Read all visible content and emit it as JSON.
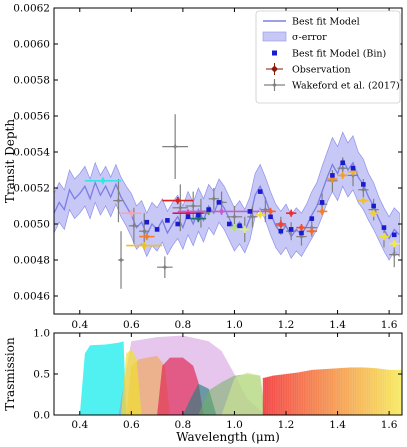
{
  "chart_data": [
    {
      "type": "line",
      "ylabel": "Transit Depth",
      "xlim": [
        0.3,
        1.65
      ],
      "ylim": [
        0.0045,
        0.0062
      ],
      "xticks": [
        0.4,
        0.6,
        0.8,
        1.0,
        1.2,
        1.4,
        1.6
      ],
      "xtick_labels": [
        "0.4",
        "0.6",
        "0.8",
        "1.0",
        "1.2",
        "1.4",
        "1.6"
      ],
      "yticks": [
        0.0046,
        0.0048,
        0.005,
        0.0052,
        0.0054,
        0.0056,
        0.0058,
        0.006,
        0.0062
      ],
      "ytick_labels": [
        "0.0046",
        "0.0048",
        "0.0050",
        "0.0052",
        "0.0054",
        "0.0056",
        "0.0058",
        "0.0060",
        "0.0062"
      ],
      "legend_position": "top-right",
      "legend": [
        {
          "label": "Best fit Model",
          "kind": "line",
          "color": "#7b7ee6"
        },
        {
          "label": "σ-error",
          "kind": "band",
          "color": "#c7c8f5"
        },
        {
          "label": "Best fit Model (Bin)",
          "kind": "square",
          "color": "#1a1ad0"
        },
        {
          "label": "Observation",
          "kind": "errorpoint",
          "color": "#8b1a0a"
        },
        {
          "label": "Wakeford et al. (2017)",
          "kind": "errorpoint",
          "color": "#808080"
        }
      ],
      "model": {
        "x": [
          0.3,
          0.32,
          0.34,
          0.36,
          0.38,
          0.4,
          0.42,
          0.44,
          0.46,
          0.48,
          0.5,
          0.52,
          0.54,
          0.56,
          0.58,
          0.6,
          0.62,
          0.64,
          0.66,
          0.68,
          0.7,
          0.72,
          0.74,
          0.76,
          0.78,
          0.8,
          0.82,
          0.84,
          0.86,
          0.88,
          0.9,
          0.92,
          0.94,
          0.96,
          0.98,
          1.0,
          1.02,
          1.04,
          1.06,
          1.08,
          1.1,
          1.12,
          1.14,
          1.16,
          1.18,
          1.2,
          1.22,
          1.24,
          1.26,
          1.28,
          1.3,
          1.32,
          1.34,
          1.36,
          1.38,
          1.4,
          1.42,
          1.44,
          1.46,
          1.48,
          1.5,
          1.52,
          1.54,
          1.56,
          1.58,
          1.6,
          1.62,
          1.64
        ],
        "y": [
          0.00506,
          0.00512,
          0.00508,
          0.00519,
          0.00514,
          0.00517,
          0.00521,
          0.00514,
          0.00523,
          0.00516,
          0.00521,
          0.00515,
          0.00522,
          0.00515,
          0.0051,
          0.00505,
          0.00498,
          0.00501,
          0.00494,
          0.005,
          0.00497,
          0.00502,
          0.00495,
          0.005,
          0.00504,
          0.00498,
          0.00506,
          0.005,
          0.00508,
          0.00502,
          0.0051,
          0.00506,
          0.00513,
          0.00509,
          0.00503,
          0.00497,
          0.00501,
          0.00496,
          0.00503,
          0.00516,
          0.00521,
          0.00514,
          0.00506,
          0.00499,
          0.00495,
          0.00499,
          0.00493,
          0.00497,
          0.00494,
          0.00499,
          0.00505,
          0.0051,
          0.00518,
          0.00526,
          0.00533,
          0.00528,
          0.00536,
          0.0053,
          0.00534,
          0.00526,
          0.00522,
          0.00515,
          0.0051,
          0.00503,
          0.00497,
          0.00492,
          0.00497,
          0.00494
        ],
        "sigma": [
          0.00011,
          0.00011,
          0.00011,
          0.00011,
          0.00011,
          0.00011,
          0.00011,
          0.00011,
          0.00011,
          0.00011,
          0.00011,
          0.00011,
          0.00011,
          0.00011,
          0.00011,
          0.00012,
          0.00012,
          0.00012,
          0.00012,
          0.00012,
          0.00012,
          0.00012,
          0.00012,
          0.00012,
          0.00012,
          0.00012,
          0.00012,
          0.00012,
          0.00012,
          0.00012,
          0.00012,
          0.00012,
          0.00012,
          0.00012,
          0.00012,
          0.00012,
          0.00012,
          0.00012,
          0.00012,
          0.00012,
          0.00012,
          0.00012,
          0.00012,
          0.00012,
          0.00012,
          0.00012,
          0.00012,
          0.00012,
          0.00012,
          0.00012,
          0.00013,
          0.00013,
          0.00014,
          0.00014,
          0.00015,
          0.00015,
          0.00015,
          0.00015,
          0.00015,
          0.00014,
          0.00014,
          0.00013,
          0.00013,
          0.00012,
          0.00012,
          0.00012,
          0.00012,
          0.00012
        ]
      },
      "model_bin": {
        "x": [
          0.66,
          0.7,
          0.74,
          0.78,
          0.82,
          0.86,
          0.9,
          0.94,
          0.98,
          1.02,
          1.06,
          1.1,
          1.14,
          1.18,
          1.22,
          1.26,
          1.3,
          1.34,
          1.38,
          1.42,
          1.46,
          1.5,
          1.54,
          1.58,
          1.62
        ],
        "y": [
          0.00501,
          0.00497,
          0.00502,
          0.005,
          0.00504,
          0.00505,
          0.00508,
          0.00512,
          0.005,
          0.00499,
          0.00507,
          0.00518,
          0.00504,
          0.00496,
          0.00497,
          0.00495,
          0.00503,
          0.00512,
          0.00527,
          0.00534,
          0.00531,
          0.00522,
          0.0051,
          0.00498,
          0.00494
        ]
      },
      "observations": [
        {
          "x": 0.49,
          "y": 0.00524,
          "xerr": 0.07,
          "yerr": 2e-05,
          "color": "#33e6e6"
        },
        {
          "x": 0.65,
          "y": 0.00488,
          "xerr": 0.07,
          "yerr": 2e-05,
          "color": "#f0c020"
        },
        {
          "x": 0.6,
          "y": 0.00506,
          "xerr": 0.04,
          "yerr": 2e-05,
          "color": "#f5a5b5"
        },
        {
          "x": 0.66,
          "y": 0.00493,
          "xerr": 0.03,
          "yerr": 2e-05,
          "color": "#f08030"
        },
        {
          "x": 0.78,
          "y": 0.00513,
          "xerr": 0.06,
          "yerr": 2e-05,
          "color": "#dd2020"
        },
        {
          "x": 0.82,
          "y": 0.00506,
          "xerr": 0.06,
          "yerr": 2e-05,
          "color": "#dd1060"
        },
        {
          "x": 0.86,
          "y": 0.00503,
          "xerr": 0.03,
          "yerr": 2e-05,
          "color": "#207070"
        },
        {
          "x": 0.9,
          "y": 0.00507,
          "xerr": 0.03,
          "yerr": 2e-05,
          "color": "#5a9a4a"
        },
        {
          "x": 0.95,
          "y": 0.00507,
          "xerr": 0.17,
          "yerr": 2e-05,
          "color": "#c060d0"
        },
        {
          "x": 1.0,
          "y": 0.00498,
          "xerr": 0.02,
          "yerr": 2e-05,
          "color": "#b8e070"
        },
        {
          "x": 1.04,
          "y": 0.00497,
          "xerr": 0.02,
          "yerr": 2e-05,
          "color": "#d8ec90"
        },
        {
          "x": 1.1,
          "y": 0.00505,
          "xerr": 0.02,
          "yerr": 2e-05,
          "color": "#f0e040"
        },
        {
          "x": 1.14,
          "y": 0.00507,
          "xerr": 0.02,
          "yerr": 2e-05,
          "color": "#f06030"
        },
        {
          "x": 1.18,
          "y": 0.005,
          "xerr": 0.02,
          "yerr": 2e-05,
          "color": "#f04040"
        },
        {
          "x": 1.22,
          "y": 0.00506,
          "xerr": 0.02,
          "yerr": 2e-05,
          "color": "#e83030"
        },
        {
          "x": 1.26,
          "y": 0.00498,
          "xerr": 0.02,
          "yerr": 2e-05,
          "color": "#f05030"
        },
        {
          "x": 1.3,
          "y": 0.00496,
          "xerr": 0.02,
          "yerr": 2e-05,
          "color": "#f06a30"
        },
        {
          "x": 1.34,
          "y": 0.00507,
          "xerr": 0.02,
          "yerr": 2e-05,
          "color": "#f08030"
        },
        {
          "x": 1.38,
          "y": 0.00525,
          "xerr": 0.02,
          "yerr": 2e-05,
          "color": "#f09030"
        },
        {
          "x": 1.42,
          "y": 0.00527,
          "xerr": 0.02,
          "yerr": 2e-05,
          "color": "#f0a030"
        },
        {
          "x": 1.46,
          "y": 0.00529,
          "xerr": 0.02,
          "yerr": 2e-05,
          "color": "#f0b030"
        },
        {
          "x": 1.5,
          "y": 0.00513,
          "xerr": 0.02,
          "yerr": 2e-05,
          "color": "#f0c030"
        },
        {
          "x": 1.54,
          "y": 0.00506,
          "xerr": 0.02,
          "yerr": 2e-05,
          "color": "#f0d030"
        },
        {
          "x": 1.58,
          "y": 0.00493,
          "xerr": 0.02,
          "yerr": 2e-05,
          "color": "#f0e030"
        },
        {
          "x": 1.62,
          "y": 0.00489,
          "xerr": 0.02,
          "yerr": 2e-05,
          "color": "#f5ec40"
        }
      ],
      "wakeford_2017": [
        {
          "x": 0.55,
          "y": 0.00513,
          "xerr": 0.02,
          "yerr": 0.00012
        },
        {
          "x": 0.56,
          "y": 0.0048,
          "xerr": 0.01,
          "yerr": 0.00016
        },
        {
          "x": 0.61,
          "y": 0.00499,
          "xerr": 0.02,
          "yerr": 0.0001
        },
        {
          "x": 0.65,
          "y": 0.00496,
          "xerr": 0.02,
          "yerr": 0.0001
        },
        {
          "x": 0.73,
          "y": 0.00476,
          "xerr": 0.03,
          "yerr": 6e-05
        },
        {
          "x": 0.77,
          "y": 0.00543,
          "xerr": 0.05,
          "yerr": 0.00018
        },
        {
          "x": 0.79,
          "y": 0.00509,
          "xerr": 0.03,
          "yerr": 0.00013
        },
        {
          "x": 0.84,
          "y": 0.0051,
          "xerr": 0.03,
          "yerr": 8e-05
        },
        {
          "x": 0.87,
          "y": 0.00506,
          "xerr": 0.03,
          "yerr": 8e-05
        },
        {
          "x": 0.92,
          "y": 0.00514,
          "xerr": 0.02,
          "yerr": 6e-05
        },
        {
          "x": 0.95,
          "y": 0.00512,
          "xerr": 0.02,
          "yerr": 6e-05
        },
        {
          "x": 1.0,
          "y": 0.00504,
          "xerr": 0.03,
          "yerr": 6e-05
        },
        {
          "x": 1.04,
          "y": 0.00497,
          "xerr": 0.02,
          "yerr": 7e-05
        },
        {
          "x": 1.07,
          "y": 0.00504,
          "xerr": 0.02,
          "yerr": 6e-05
        },
        {
          "x": 1.12,
          "y": 0.00508,
          "xerr": 0.02,
          "yerr": 7e-05
        },
        {
          "x": 1.18,
          "y": 0.00499,
          "xerr": 0.02,
          "yerr": 5e-05
        },
        {
          "x": 1.22,
          "y": 0.00496,
          "xerr": 0.02,
          "yerr": 5e-05
        },
        {
          "x": 1.26,
          "y": 0.00493,
          "xerr": 0.02,
          "yerr": 5e-05
        },
        {
          "x": 1.3,
          "y": 0.00498,
          "xerr": 0.02,
          "yerr": 5e-05
        },
        {
          "x": 1.34,
          "y": 0.00511,
          "xerr": 0.02,
          "yerr": 6e-05
        },
        {
          "x": 1.38,
          "y": 0.00524,
          "xerr": 0.02,
          "yerr": 6e-05
        },
        {
          "x": 1.42,
          "y": 0.00531,
          "xerr": 0.02,
          "yerr": 6e-05
        },
        {
          "x": 1.46,
          "y": 0.00527,
          "xerr": 0.02,
          "yerr": 6e-05
        },
        {
          "x": 1.5,
          "y": 0.00519,
          "xerr": 0.02,
          "yerr": 6e-05
        },
        {
          "x": 1.54,
          "y": 0.00508,
          "xerr": 0.02,
          "yerr": 6e-05
        },
        {
          "x": 1.58,
          "y": 0.00493,
          "xerr": 0.02,
          "yerr": 6e-05
        },
        {
          "x": 1.62,
          "y": 0.00483,
          "xerr": 0.02,
          "yerr": 7e-05
        }
      ]
    },
    {
      "type": "area",
      "xlabel": "Wavelength (μm)",
      "ylabel": "Trasmission",
      "xlim": [
        0.3,
        1.65
      ],
      "ylim": [
        0.0,
        1.0
      ],
      "xticks": [
        0.4,
        0.6,
        0.8,
        1.0,
        1.2,
        1.4,
        1.6
      ],
      "xtick_labels": [
        "0.4",
        "0.6",
        "0.8",
        "1.0",
        "1.2",
        "1.4",
        "1.6"
      ],
      "yticks": [
        0.0,
        0.5,
        1.0
      ],
      "ytick_labels": [
        "0.0",
        "0.5",
        "1.0"
      ],
      "filters": [
        {
          "color": "#33eeee",
          "alpha": 0.85,
          "x": [
            0.4,
            0.42,
            0.44,
            0.5,
            0.55,
            0.57,
            0.58
          ],
          "y": [
            0.0,
            0.75,
            0.85,
            0.86,
            0.88,
            0.9,
            0.0
          ]
        },
        {
          "color": "#c070d0",
          "alpha": 0.4,
          "x": [
            0.55,
            0.6,
            0.7,
            0.8,
            0.9,
            0.95,
            1.0,
            1.05,
            1.12
          ],
          "y": [
            0.0,
            0.9,
            0.95,
            0.97,
            0.9,
            0.78,
            0.5,
            0.2,
            0.0
          ]
        },
        {
          "color": "#f0a040",
          "alpha": 0.55,
          "x": [
            0.58,
            0.6,
            0.63,
            0.66,
            0.7,
            0.73,
            0.75
          ],
          "y": [
            0.0,
            0.6,
            0.68,
            0.7,
            0.72,
            0.6,
            0.0
          ]
        },
        {
          "color": "#f0e030",
          "alpha": 0.7,
          "x": [
            0.56,
            0.58,
            0.6,
            0.62,
            0.64
          ],
          "y": [
            0.0,
            0.75,
            0.8,
            0.7,
            0.0
          ]
        },
        {
          "color": "#e02050",
          "alpha": 0.65,
          "x": [
            0.7,
            0.72,
            0.75,
            0.8,
            0.84,
            0.86,
            0.88
          ],
          "y": [
            0.0,
            0.6,
            0.7,
            0.7,
            0.6,
            0.4,
            0.0
          ]
        },
        {
          "color": "#2a8080",
          "alpha": 0.65,
          "x": [
            0.8,
            0.83,
            0.86,
            0.9,
            0.93
          ],
          "y": [
            0.0,
            0.2,
            0.38,
            0.32,
            0.0
          ]
        },
        {
          "color": "#70b060",
          "alpha": 0.55,
          "x": [
            0.86,
            0.9,
            0.95,
            1.0,
            1.05,
            1.1,
            1.12
          ],
          "y": [
            0.0,
            0.3,
            0.4,
            0.48,
            0.5,
            0.48,
            0.0
          ]
        },
        {
          "color": "#d0e890",
          "alpha": 0.6,
          "x": [
            0.95,
            1.0,
            1.05,
            1.1,
            1.12
          ],
          "y": [
            0.0,
            0.45,
            0.52,
            0.48,
            0.0
          ]
        }
      ],
      "grism": {
        "x": [
          1.11,
          1.15,
          1.2,
          1.25,
          1.3,
          1.35,
          1.4,
          1.45,
          1.5,
          1.55,
          1.6,
          1.65
        ],
        "y": [
          0.45,
          0.48,
          0.5,
          0.52,
          0.55,
          0.56,
          0.57,
          0.58,
          0.58,
          0.57,
          0.55,
          0.55
        ]
      }
    }
  ]
}
